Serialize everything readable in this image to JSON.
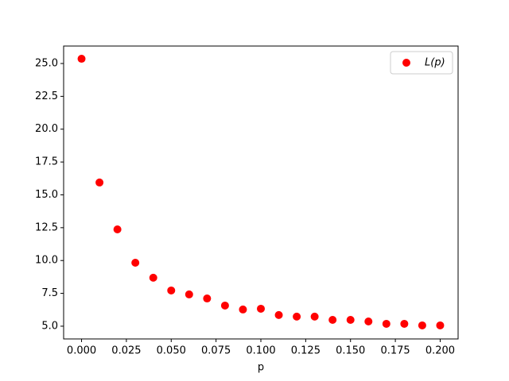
{
  "chart_data": {
    "type": "scatter",
    "xlabel": "p",
    "series": [
      {
        "name": "L(p)",
        "color": "#ff0000",
        "x": [
          0,
          0.01,
          0.02,
          0.03,
          0.04,
          0.05,
          0.06,
          0.07,
          0.08,
          0.09,
          0.1,
          0.11,
          0.12,
          0.13,
          0.14,
          0.15,
          0.16,
          0.17,
          0.18,
          0.19,
          0.2
        ],
        "values": [
          25.36,
          15.94,
          12.37,
          9.83,
          8.69,
          7.72,
          7.42,
          7.11,
          6.57,
          6.27,
          6.33,
          5.85,
          5.73,
          5.73,
          5.48,
          5.48,
          5.36,
          5.18,
          5.18,
          5.06,
          5.06
        ]
      }
    ],
    "xlim": [
      -0.01,
      0.21
    ],
    "xticks": [
      {
        "value": 0,
        "label": "0.000"
      },
      {
        "value": 0.025,
        "label": "0.025"
      },
      {
        "value": 0.05,
        "label": "0.050"
      },
      {
        "value": 0.075,
        "label": "0.075"
      },
      {
        "value": 0.1,
        "label": "0.100"
      },
      {
        "value": 0.125,
        "label": "0.125"
      },
      {
        "value": 0.15,
        "label": "0.150"
      },
      {
        "value": 0.175,
        "label": "0.175"
      },
      {
        "value": 0.2,
        "label": "0.200"
      }
    ],
    "ylim": [
      4.03,
      26.33
    ],
    "yticks": [
      {
        "value": 5,
        "label": "5.0"
      },
      7.5,
      {
        "value": 10,
        "label": "10.0"
      },
      12.5,
      {
        "value": 15,
        "label": "15.0"
      },
      17.5,
      {
        "value": 20,
        "label": "20.0"
      },
      22.5,
      {
        "value": 25,
        "label": "25.0"
      }
    ],
    "legend": "upper right"
  }
}
